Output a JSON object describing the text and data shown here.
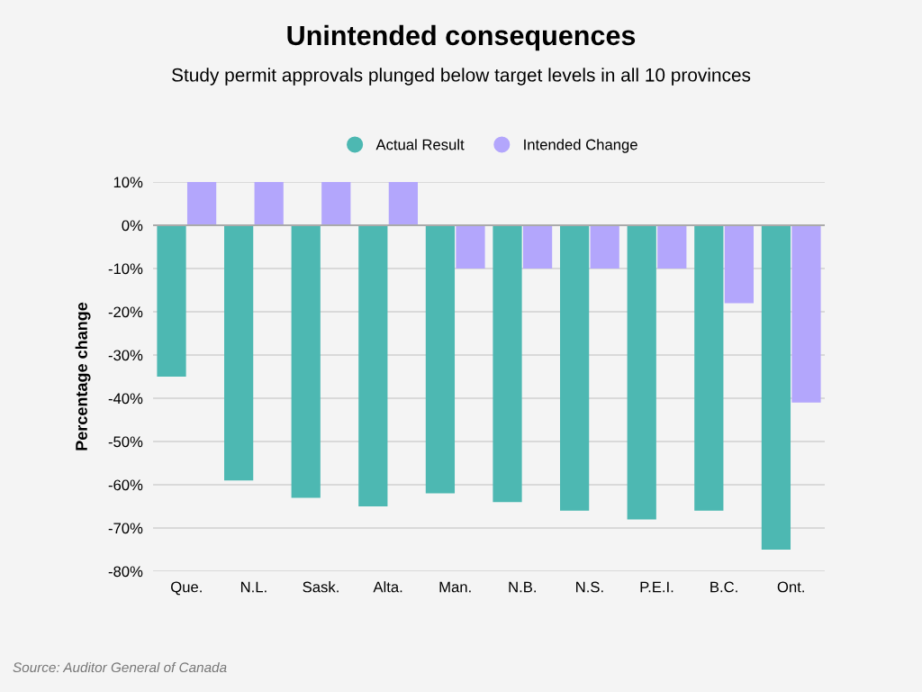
{
  "chart_data": {
    "type": "bar",
    "title": "Unintended consequences",
    "subtitle": "Study permit approvals plunged below target levels in all 10 provinces",
    "ylabel": "Percentage change",
    "categories": [
      "Que.",
      "N.L.",
      "Sask.",
      "Alta.",
      "Man.",
      "N.B.",
      "N.S.",
      "P.E.I.",
      "B.C.",
      "Ont."
    ],
    "series": [
      {
        "name": "Actual Result",
        "color": "#4db8b2",
        "values": [
          -35,
          -59,
          -63,
          -65,
          -62,
          -64,
          -66,
          -68,
          -66,
          -75
        ]
      },
      {
        "name": "Intended Change",
        "color": "#b3a6fc",
        "values": [
          10,
          10,
          10,
          10,
          -10,
          -10,
          -10,
          -10,
          -18,
          -41
        ]
      }
    ],
    "ylim": [
      -80,
      10
    ],
    "yticks": [
      {
        "value": 10,
        "label": "10%"
      },
      {
        "value": 0,
        "label": "0%"
      },
      {
        "value": -10,
        "label": "-10%"
      },
      {
        "value": -20,
        "label": "-20%"
      },
      {
        "value": -30,
        "label": "-30%"
      },
      {
        "value": -40,
        "label": "-40%"
      },
      {
        "value": -50,
        "label": "-50%"
      },
      {
        "value": -60,
        "label": "-60%"
      },
      {
        "value": -70,
        "label": "-70%"
      },
      {
        "value": -80,
        "label": "-80%"
      }
    ],
    "grid": "y",
    "legend": "top",
    "annotations": [
      "Source: Auditor General of Canada"
    ]
  }
}
